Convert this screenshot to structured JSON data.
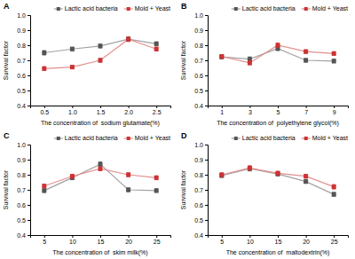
{
  "chart_data": [
    {
      "type": "line",
      "title": "A",
      "xlabel": "The concentration of  sodium glutamate(%)",
      "ylabel": "Survival factor",
      "x": [
        0.5,
        1.0,
        1.5,
        2.0,
        2.5
      ],
      "xlim": [
        0.25,
        2.75
      ],
      "xticks": [
        0.5,
        {
          "value": 1.0,
          "label": "1.0"
        },
        1.5,
        {
          "value": 2.0,
          "label": "2.0"
        },
        2.5
      ],
      "ylim": [
        0.4,
        1.0
      ],
      "yticks": [
        0.4,
        0.5,
        0.6,
        0.7,
        0.8,
        0.9,
        {
          "value": 1.0,
          "label": "1.0"
        }
      ],
      "grid": false,
      "legend": "upper right",
      "series": [
        {
          "name": "Lactic acid bacteria",
          "color": "#555555",
          "marker": "square",
          "values": [
            0.75,
            0.775,
            0.795,
            0.84,
            0.81
          ],
          "errors": [
            0.015,
            0.012,
            0.013,
            0.014,
            0.012
          ]
        },
        {
          "name": "Mold + Yeast",
          "color": "#cc3333",
          "marker": "square",
          "values": [
            0.645,
            0.655,
            0.7,
            0.84,
            0.775
          ],
          "errors": [
            0.013,
            0.011,
            0.013,
            0.015,
            0.013
          ]
        }
      ]
    },
    {
      "type": "line",
      "title": "B",
      "xlabel": "The concentration of  polyethylene glycol(%)",
      "ylabel": "Survival factor",
      "x": [
        1,
        3,
        5,
        7,
        9
      ],
      "xlim": [
        0,
        10
      ],
      "xticks": [
        1,
        3,
        5,
        7,
        9
      ],
      "ylim": [
        0.4,
        1.0
      ],
      "yticks": [
        0.4,
        0.5,
        0.6,
        0.7,
        0.8,
        0.9,
        {
          "value": 1.0,
          "label": "1.0"
        }
      ],
      "grid": false,
      "legend": "upper right",
      "series": [
        {
          "name": "Lactic acid bacteria",
          "color": "#555555",
          "marker": "square",
          "values": [
            0.723,
            0.708,
            0.778,
            0.7,
            0.695
          ],
          "errors": [
            0.013,
            0.015,
            0.013,
            0.012,
            0.012
          ]
        },
        {
          "name": "Mold + Yeast",
          "color": "#cc3333",
          "marker": "square",
          "values": [
            0.725,
            0.683,
            0.8,
            0.758,
            0.745
          ],
          "errors": [
            0.012,
            0.013,
            0.015,
            0.012,
            0.012
          ]
        }
      ]
    },
    {
      "type": "line",
      "title": "C",
      "xlabel": "The concentration of  skim milk(%)",
      "ylabel": "Survival factor",
      "x": [
        5,
        10,
        15,
        20,
        25
      ],
      "xlim": [
        2.5,
        27.5
      ],
      "xticks": [
        5,
        10,
        15,
        20,
        25
      ],
      "ylim": [
        0.4,
        1.0
      ],
      "yticks": [
        0.4,
        0.5,
        0.6,
        0.7,
        0.8,
        0.9,
        {
          "value": 1.0,
          "label": "1.0"
        }
      ],
      "grid": false,
      "legend": "upper right",
      "series": [
        {
          "name": "Lactic acid bacteria",
          "color": "#555555",
          "marker": "square",
          "values": [
            0.695,
            0.78,
            0.87,
            0.7,
            0.695
          ],
          "errors": [
            0.013,
            0.013,
            0.015,
            0.013,
            0.012
          ]
        },
        {
          "name": "Mold + Yeast",
          "color": "#cc3333",
          "marker": "square",
          "values": [
            0.725,
            0.79,
            0.84,
            0.8,
            0.78
          ],
          "errors": [
            0.012,
            0.013,
            0.013,
            0.013,
            0.013
          ]
        }
      ]
    },
    {
      "type": "line",
      "title": "D",
      "xlabel": "The concentration of  maltodextrin(%)",
      "ylabel": "Survival factor",
      "x": [
        5,
        10,
        15,
        20,
        25
      ],
      "xlim": [
        2.5,
        27.5
      ],
      "xticks": [
        5,
        10,
        15,
        20,
        25
      ],
      "ylim": [
        0.4,
        1.0
      ],
      "yticks": [
        0.4,
        0.5,
        0.6,
        0.7,
        0.8,
        0.9,
        {
          "value": 1.0,
          "label": "1.0"
        }
      ],
      "grid": false,
      "legend": "upper right",
      "series": [
        {
          "name": "Lactic acid bacteria",
          "color": "#555555",
          "marker": "square",
          "values": [
            0.795,
            0.84,
            0.805,
            0.755,
            0.67
          ],
          "errors": [
            0.013,
            0.015,
            0.013,
            0.012,
            0.013
          ]
        },
        {
          "name": "Mold + Yeast",
          "color": "#cc3333",
          "marker": "square",
          "values": [
            0.8,
            0.845,
            0.81,
            0.79,
            0.72
          ],
          "errors": [
            0.012,
            0.015,
            0.013,
            0.013,
            0.015
          ]
        }
      ]
    }
  ]
}
